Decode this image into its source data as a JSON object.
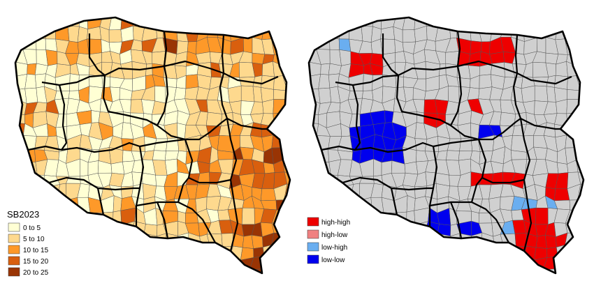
{
  "left_map": {
    "legend_title": "SB2023",
    "classes": [
      {
        "label": "0 to 5",
        "color": "#ffffd4"
      },
      {
        "label": "5 to 10",
        "color": "#fed98e"
      },
      {
        "label": "10 to 15",
        "color": "#fe9929"
      },
      {
        "label": "15 to 20",
        "color": "#d95f0e"
      },
      {
        "label": "20 to 25",
        "color": "#993404"
      }
    ]
  },
  "right_map": {
    "classes": [
      {
        "label": "high-high",
        "color": "#ee0000"
      },
      {
        "label": "high-low",
        "color": "#f08080"
      },
      {
        "label": "low-high",
        "color": "#6aaef0"
      },
      {
        "label": "low-low",
        "color": "#0000ee"
      },
      {
        "label": "",
        "color": "#d0d0d0"
      }
    ]
  }
}
